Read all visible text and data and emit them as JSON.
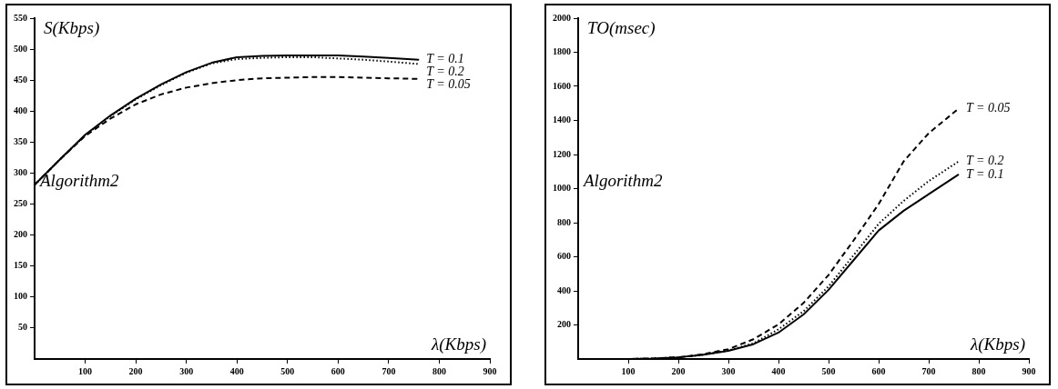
{
  "chart_data": [
    {
      "type": "line",
      "ylabel": "S(Kbps)",
      "xlabel": "λ(Kbps)",
      "annotations": [
        "Algorithm2"
      ],
      "xlim": [
        0,
        900
      ],
      "xticks": [
        100,
        200,
        300,
        400,
        500,
        600,
        700,
        800,
        900
      ],
      "ylim": [
        0,
        550
      ],
      "yticks": [
        50,
        100,
        150,
        200,
        250,
        300,
        350,
        400,
        450,
        500,
        550
      ],
      "series": [
        {
          "name": "T = 0.1",
          "color": "#000000",
          "line_style": "solid",
          "x": [
            0,
            50,
            100,
            150,
            200,
            250,
            300,
            350,
            400,
            450,
            500,
            550,
            600,
            650,
            700,
            760
          ],
          "values": [
            281,
            322,
            362,
            393,
            420,
            443,
            463,
            478,
            487,
            489,
            490,
            490,
            490,
            488,
            486,
            483
          ]
        },
        {
          "name": "T = 0.2",
          "color": "#000000",
          "line_style": "dotted",
          "x": [
            0,
            50,
            100,
            150,
            200,
            250,
            300,
            350,
            400,
            450,
            500,
            550,
            600,
            650,
            700,
            760
          ],
          "values": [
            281,
            322,
            361,
            392,
            419,
            442,
            462,
            477,
            484,
            486,
            487,
            487,
            485,
            483,
            480,
            476
          ]
        },
        {
          "name": "T = 0.05",
          "color": "#000000",
          "line_style": "dashed",
          "x": [
            0,
            50,
            100,
            150,
            200,
            250,
            300,
            350,
            400,
            450,
            500,
            550,
            600,
            650,
            700,
            760
          ],
          "values": [
            281,
            322,
            360,
            388,
            411,
            427,
            438,
            445,
            450,
            453,
            454,
            455,
            455,
            454,
            453,
            452
          ]
        }
      ]
    },
    {
      "type": "line",
      "ylabel": "TO(msec)",
      "xlabel": "λ(Kbps)",
      "annotations": [
        "Algorithm2"
      ],
      "xlim": [
        0,
        900
      ],
      "xticks": [
        100,
        200,
        300,
        400,
        500,
        600,
        700,
        800,
        900
      ],
      "ylim": [
        0,
        2000
      ],
      "yticks": [
        200,
        400,
        600,
        800,
        1000,
        1200,
        1400,
        1600,
        1800,
        2000
      ],
      "series": [
        {
          "name": "T = 0.05",
          "color": "#000000",
          "line_style": "dashed",
          "x": [
            0,
            100,
            150,
            200,
            250,
            300,
            350,
            400,
            450,
            500,
            550,
            600,
            650,
            700,
            760
          ],
          "values": [
            0,
            0,
            3,
            10,
            28,
            58,
            116,
            203,
            329,
            493,
            696,
            909,
            1160,
            1325,
            1470
          ]
        },
        {
          "name": "T = 0.2",
          "color": "#000000",
          "line_style": "dotted",
          "x": [
            0,
            100,
            150,
            200,
            250,
            300,
            350,
            400,
            450,
            500,
            550,
            600,
            650,
            700,
            760
          ],
          "values": [
            0,
            0,
            3,
            10,
            25,
            50,
            92,
            174,
            280,
            426,
            609,
            793,
            928,
            1044,
            1160
          ]
        },
        {
          "name": "T = 0.1",
          "color": "#000000",
          "line_style": "solid",
          "x": [
            0,
            100,
            150,
            200,
            250,
            300,
            350,
            400,
            450,
            500,
            550,
            600,
            650,
            700,
            760
          ],
          "values": [
            0,
            0,
            3,
            10,
            25,
            48,
            87,
            155,
            261,
            406,
            580,
            754,
            870,
            967,
            1083
          ]
        }
      ]
    }
  ]
}
